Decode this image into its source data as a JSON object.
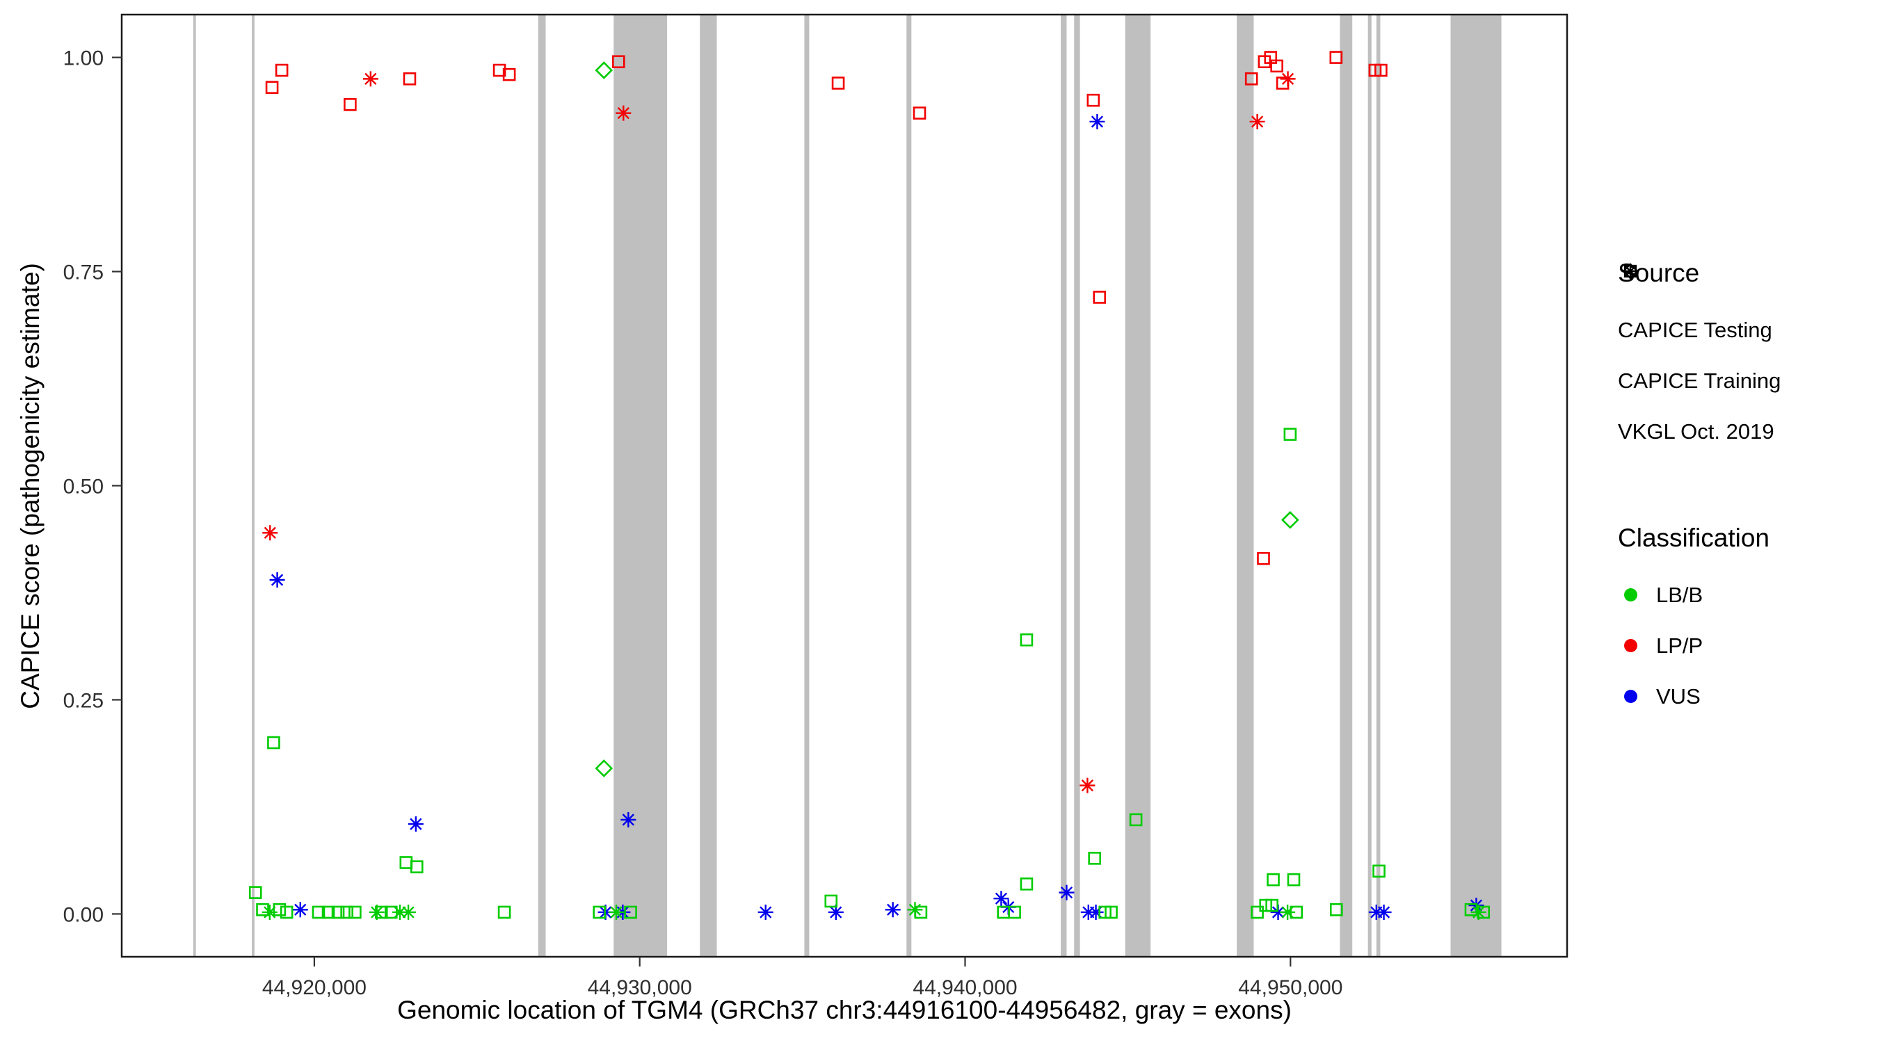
{
  "figure": {
    "background": "#FFFFFF",
    "panel_border": "#1A1A1A"
  },
  "legend": {
    "source": {
      "title": "Source",
      "items": [
        {
          "label": "CAPICE Testing",
          "shape": "diamond"
        },
        {
          "label": "CAPICE Training",
          "shape": "square"
        },
        {
          "label": "VKGL Oct. 2019",
          "shape": "asterisk"
        }
      ]
    },
    "classification": {
      "title": "Classification",
      "items": [
        {
          "label": "LB/B",
          "color": "#00CC00"
        },
        {
          "label": "LP/P",
          "color": "#F30000"
        },
        {
          "label": "VUS",
          "color": "#0000EE"
        }
      ]
    }
  },
  "chart_data": {
    "type": "scatter",
    "title": "",
    "xlabel": "Genomic location of TGM4 (GRCh37 chr3:44916100-44956482, gray = exons)",
    "ylabel": "CAPICE score (pathogenicity estimate)",
    "x_domain": [
      44914081,
      44958501
    ],
    "y_domain": [
      -0.05,
      1.05
    ],
    "grid": "none",
    "legend_position": "right",
    "x_ticks": [
      {
        "value": 44920000,
        "label": "44,920,000"
      },
      {
        "value": 44930000,
        "label": "44,930,000"
      },
      {
        "value": 44940000,
        "label": "44,940,000"
      },
      {
        "value": 44950000,
        "label": "44,950,000"
      }
    ],
    "y_ticks": [
      {
        "value": 0.0,
        "label": "0.00"
      },
      {
        "value": 0.25,
        "label": "0.25"
      },
      {
        "value": 0.5,
        "label": "0.50"
      },
      {
        "value": 0.75,
        "label": "0.75"
      },
      {
        "value": 1.0,
        "label": "1.00"
      }
    ],
    "exon_color": "#BFBFBF",
    "exons": [
      [
        44916280,
        44916360
      ],
      [
        44918080,
        44918160
      ],
      [
        44926880,
        44927110
      ],
      [
        44929200,
        44930840
      ],
      [
        44931850,
        44932370
      ],
      [
        44935060,
        44935210
      ],
      [
        44938200,
        44938350
      ],
      [
        44942940,
        44943120
      ],
      [
        44943350,
        44943530
      ],
      [
        44944920,
        44945700
      ],
      [
        44948350,
        44948870
      ],
      [
        44951520,
        44951900
      ],
      [
        44952380,
        44952490
      ],
      [
        44952640,
        44952760
      ],
      [
        44954920,
        44956482
      ]
    ],
    "source_labels": {
      "testing": "CAPICE Testing",
      "training": "CAPICE Training",
      "vkgl": "VKGL Oct. 2019"
    },
    "shape_by_source": {
      "testing": "diamond",
      "training": "square",
      "vkgl": "asterisk"
    },
    "color_by_classification": {
      "LB/B": "#00CC00",
      "LP/P": "#F30000",
      "VUS": "#0000EE"
    },
    "points": [
      {
        "x": 44918700,
        "y": 0.965,
        "src": "training",
        "cls": "LP/P"
      },
      {
        "x": 44919000,
        "y": 0.985,
        "src": "training",
        "cls": "LP/P"
      },
      {
        "x": 44921100,
        "y": 0.945,
        "src": "training",
        "cls": "LP/P"
      },
      {
        "x": 44922930,
        "y": 0.975,
        "src": "training",
        "cls": "LP/P"
      },
      {
        "x": 44925690,
        "y": 0.985,
        "src": "training",
        "cls": "LP/P"
      },
      {
        "x": 44925990,
        "y": 0.98,
        "src": "training",
        "cls": "LP/P"
      },
      {
        "x": 44929350,
        "y": 0.995,
        "src": "training",
        "cls": "LP/P"
      },
      {
        "x": 44936100,
        "y": 0.97,
        "src": "training",
        "cls": "LP/P"
      },
      {
        "x": 44938600,
        "y": 0.935,
        "src": "training",
        "cls": "LP/P"
      },
      {
        "x": 44943940,
        "y": 0.95,
        "src": "training",
        "cls": "LP/P"
      },
      {
        "x": 44944130,
        "y": 0.72,
        "src": "training",
        "cls": "LP/P"
      },
      {
        "x": 44948800,
        "y": 0.975,
        "src": "training",
        "cls": "LP/P"
      },
      {
        "x": 44949170,
        "y": 0.415,
        "src": "training",
        "cls": "LP/P"
      },
      {
        "x": 44949200,
        "y": 0.995,
        "src": "training",
        "cls": "LP/P"
      },
      {
        "x": 44949390,
        "y": 1.0,
        "src": "training",
        "cls": "LP/P"
      },
      {
        "x": 44949580,
        "y": 0.99,
        "src": "training",
        "cls": "LP/P"
      },
      {
        "x": 44949760,
        "y": 0.97,
        "src": "training",
        "cls": "LP/P"
      },
      {
        "x": 44951400,
        "y": 1.0,
        "src": "training",
        "cls": "LP/P"
      },
      {
        "x": 44952600,
        "y": 0.985,
        "src": "training",
        "cls": "LP/P"
      },
      {
        "x": 44952780,
        "y": 0.985,
        "src": "training",
        "cls": "LP/P"
      },
      {
        "x": 44921730,
        "y": 0.975,
        "src": "vkgl",
        "cls": "LP/P"
      },
      {
        "x": 44929500,
        "y": 0.935,
        "src": "vkgl",
        "cls": "LP/P"
      },
      {
        "x": 44948980,
        "y": 0.925,
        "src": "vkgl",
        "cls": "LP/P"
      },
      {
        "x": 44949920,
        "y": 0.975,
        "src": "vkgl",
        "cls": "LP/P"
      },
      {
        "x": 44918640,
        "y": 0.445,
        "src": "vkgl",
        "cls": "LP/P"
      },
      {
        "x": 44943760,
        "y": 0.15,
        "src": "vkgl",
        "cls": "LP/P"
      },
      {
        "x": 44918860,
        "y": 0.39,
        "src": "vkgl",
        "cls": "VUS"
      },
      {
        "x": 44944060,
        "y": 0.925,
        "src": "vkgl",
        "cls": "VUS"
      },
      {
        "x": 44923120,
        "y": 0.105,
        "src": "vkgl",
        "cls": "VUS"
      },
      {
        "x": 44929650,
        "y": 0.11,
        "src": "vkgl",
        "cls": "VUS"
      },
      {
        "x": 44919570,
        "y": 0.005,
        "src": "vkgl",
        "cls": "VUS"
      },
      {
        "x": 44928950,
        "y": 0.002,
        "src": "vkgl",
        "cls": "VUS"
      },
      {
        "x": 44929480,
        "y": 0.002,
        "src": "vkgl",
        "cls": "VUS"
      },
      {
        "x": 44933870,
        "y": 0.002,
        "src": "vkgl",
        "cls": "VUS"
      },
      {
        "x": 44936030,
        "y": 0.002,
        "src": "vkgl",
        "cls": "VUS"
      },
      {
        "x": 44937780,
        "y": 0.005,
        "src": "vkgl",
        "cls": "VUS"
      },
      {
        "x": 44941110,
        "y": 0.018,
        "src": "vkgl",
        "cls": "VUS"
      },
      {
        "x": 44941330,
        "y": 0.008,
        "src": "vkgl",
        "cls": "VUS"
      },
      {
        "x": 44943120,
        "y": 0.025,
        "src": "vkgl",
        "cls": "VUS"
      },
      {
        "x": 44943790,
        "y": 0.002,
        "src": "vkgl",
        "cls": "VUS"
      },
      {
        "x": 44944020,
        "y": 0.002,
        "src": "vkgl",
        "cls": "VUS"
      },
      {
        "x": 44949620,
        "y": 0.002,
        "src": "vkgl",
        "cls": "VUS"
      },
      {
        "x": 44952640,
        "y": 0.002,
        "src": "vkgl",
        "cls": "VUS"
      },
      {
        "x": 44952870,
        "y": 0.002,
        "src": "vkgl",
        "cls": "VUS"
      },
      {
        "x": 44955710,
        "y": 0.01,
        "src": "vkgl",
        "cls": "VUS"
      },
      {
        "x": 44928900,
        "y": 0.985,
        "src": "testing",
        "cls": "LB/B"
      },
      {
        "x": 44928900,
        "y": 0.17,
        "src": "testing",
        "cls": "LB/B"
      },
      {
        "x": 44949990,
        "y": 0.46,
        "src": "testing",
        "cls": "LB/B"
      },
      {
        "x": 44918750,
        "y": 0.2,
        "src": "training",
        "cls": "LB/B"
      },
      {
        "x": 44918190,
        "y": 0.025,
        "src": "training",
        "cls": "LB/B"
      },
      {
        "x": 44918410,
        "y": 0.005,
        "src": "training",
        "cls": "LB/B"
      },
      {
        "x": 44918930,
        "y": 0.005,
        "src": "training",
        "cls": "LB/B"
      },
      {
        "x": 44919150,
        "y": 0.002,
        "src": "training",
        "cls": "LB/B"
      },
      {
        "x": 44920130,
        "y": 0.002,
        "src": "training",
        "cls": "LB/B"
      },
      {
        "x": 44920430,
        "y": 0.002,
        "src": "training",
        "cls": "LB/B"
      },
      {
        "x": 44920730,
        "y": 0.002,
        "src": "training",
        "cls": "LB/B"
      },
      {
        "x": 44921000,
        "y": 0.002,
        "src": "training",
        "cls": "LB/B"
      },
      {
        "x": 44921250,
        "y": 0.002,
        "src": "training",
        "cls": "LB/B"
      },
      {
        "x": 44922060,
        "y": 0.002,
        "src": "training",
        "cls": "LB/B"
      },
      {
        "x": 44922360,
        "y": 0.002,
        "src": "training",
        "cls": "LB/B"
      },
      {
        "x": 44922820,
        "y": 0.06,
        "src": "training",
        "cls": "LB/B"
      },
      {
        "x": 44923150,
        "y": 0.055,
        "src": "training",
        "cls": "LB/B"
      },
      {
        "x": 44925840,
        "y": 0.002,
        "src": "training",
        "cls": "LB/B"
      },
      {
        "x": 44928760,
        "y": 0.002,
        "src": "training",
        "cls": "LB/B"
      },
      {
        "x": 44929720,
        "y": 0.002,
        "src": "training",
        "cls": "LB/B"
      },
      {
        "x": 44935880,
        "y": 0.015,
        "src": "training",
        "cls": "LB/B"
      },
      {
        "x": 44938640,
        "y": 0.002,
        "src": "training",
        "cls": "LB/B"
      },
      {
        "x": 44941180,
        "y": 0.002,
        "src": "training",
        "cls": "LB/B"
      },
      {
        "x": 44941520,
        "y": 0.002,
        "src": "training",
        "cls": "LB/B"
      },
      {
        "x": 44941890,
        "y": 0.32,
        "src": "training",
        "cls": "LB/B"
      },
      {
        "x": 44941890,
        "y": 0.035,
        "src": "training",
        "cls": "LB/B"
      },
      {
        "x": 44943980,
        "y": 0.065,
        "src": "training",
        "cls": "LB/B"
      },
      {
        "x": 44944300,
        "y": 0.002,
        "src": "training",
        "cls": "LB/B"
      },
      {
        "x": 44944490,
        "y": 0.002,
        "src": "training",
        "cls": "LB/B"
      },
      {
        "x": 44945250,
        "y": 0.11,
        "src": "training",
        "cls": "LB/B"
      },
      {
        "x": 44948980,
        "y": 0.002,
        "src": "training",
        "cls": "LB/B"
      },
      {
        "x": 44949240,
        "y": 0.01,
        "src": "training",
        "cls": "LB/B"
      },
      {
        "x": 44949430,
        "y": 0.01,
        "src": "training",
        "cls": "LB/B"
      },
      {
        "x": 44949470,
        "y": 0.04,
        "src": "training",
        "cls": "LB/B"
      },
      {
        "x": 44949990,
        "y": 0.56,
        "src": "training",
        "cls": "LB/B"
      },
      {
        "x": 44950100,
        "y": 0.04,
        "src": "training",
        "cls": "LB/B"
      },
      {
        "x": 44950180,
        "y": 0.002,
        "src": "training",
        "cls": "LB/B"
      },
      {
        "x": 44951410,
        "y": 0.005,
        "src": "training",
        "cls": "LB/B"
      },
      {
        "x": 44952720,
        "y": 0.05,
        "src": "training",
        "cls": "LB/B"
      },
      {
        "x": 44955550,
        "y": 0.005,
        "src": "training",
        "cls": "LB/B"
      },
      {
        "x": 44955930,
        "y": 0.002,
        "src": "training",
        "cls": "LB/B"
      },
      {
        "x": 44918630,
        "y": 0.002,
        "src": "vkgl",
        "cls": "LB/B"
      },
      {
        "x": 44921920,
        "y": 0.002,
        "src": "vkgl",
        "cls": "LB/B"
      },
      {
        "x": 44922630,
        "y": 0.002,
        "src": "vkgl",
        "cls": "LB/B"
      },
      {
        "x": 44922890,
        "y": 0.002,
        "src": "vkgl",
        "cls": "LB/B"
      },
      {
        "x": 44929280,
        "y": 0.002,
        "src": "vkgl",
        "cls": "LB/B"
      },
      {
        "x": 44938460,
        "y": 0.005,
        "src": "vkgl",
        "cls": "LB/B"
      },
      {
        "x": 44949910,
        "y": 0.002,
        "src": "vkgl",
        "cls": "LB/B"
      },
      {
        "x": 44955780,
        "y": 0.002,
        "src": "vkgl",
        "cls": "LB/B"
      }
    ]
  }
}
